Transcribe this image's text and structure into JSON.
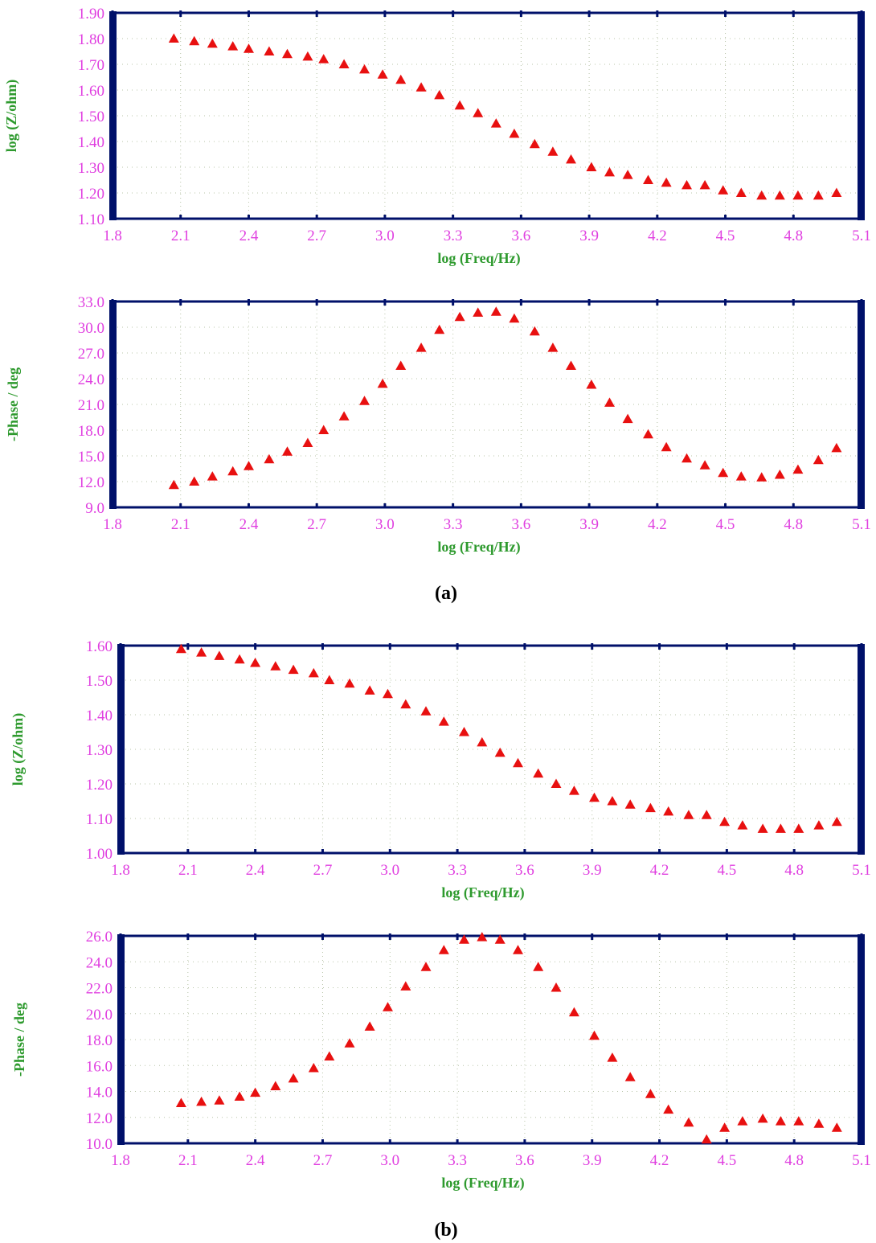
{
  "colors": {
    "frame": "#00106a",
    "tick_label": "#e040e0",
    "axis_label": "#2e9a2e",
    "grid": "#b8c4a8",
    "marker": "#e81010",
    "caption": "#000000"
  },
  "panels": [
    {
      "caption": "(a)"
    },
    {
      "caption": "(b)"
    }
  ],
  "chart_data": [
    {
      "type": "scatter",
      "panel": "(a)",
      "marker": "triangle",
      "xlabel": "log (Freq/Hz)",
      "ylabel": "log (Z/ohm)",
      "xlim": [
        1.8,
        5.1
      ],
      "ylim": [
        1.1,
        1.9
      ],
      "x_ticks": [
        "1.8",
        "2.1",
        "2.4",
        "2.7",
        "3.0",
        "3.3",
        "3.6",
        "3.9",
        "4.2",
        "4.5",
        "4.8",
        "5.1"
      ],
      "y_ticks": [
        "1.10",
        "1.20",
        "1.30",
        "1.40",
        "1.50",
        "1.60",
        "1.70",
        "1.80",
        "1.90"
      ],
      "grid": true,
      "x": [
        2.07,
        2.16,
        2.24,
        2.33,
        2.4,
        2.49,
        2.57,
        2.66,
        2.73,
        2.82,
        2.91,
        2.99,
        3.07,
        3.16,
        3.24,
        3.33,
        3.41,
        3.49,
        3.57,
        3.66,
        3.74,
        3.82,
        3.91,
        3.99,
        4.07,
        4.16,
        4.24,
        4.33,
        4.41,
        4.49,
        4.57,
        4.66,
        4.74,
        4.82,
        4.91,
        4.99
      ],
      "y": [
        1.8,
        1.79,
        1.78,
        1.77,
        1.76,
        1.75,
        1.74,
        1.73,
        1.72,
        1.7,
        1.68,
        1.66,
        1.64,
        1.61,
        1.58,
        1.54,
        1.51,
        1.47,
        1.43,
        1.39,
        1.36,
        1.33,
        1.3,
        1.28,
        1.27,
        1.25,
        1.24,
        1.23,
        1.23,
        1.21,
        1.2,
        1.19,
        1.19,
        1.19,
        1.19,
        1.2
      ]
    },
    {
      "type": "scatter",
      "panel": "(a)",
      "marker": "triangle",
      "xlabel": "log (Freq/Hz)",
      "ylabel": "-Phase / deg",
      "xlim": [
        1.8,
        5.1
      ],
      "ylim": [
        9.0,
        33.0
      ],
      "x_ticks": [
        "1.8",
        "2.1",
        "2.4",
        "2.7",
        "3.0",
        "3.3",
        "3.6",
        "3.9",
        "4.2",
        "4.5",
        "4.8",
        "5.1"
      ],
      "y_ticks": [
        "9.0",
        "12.0",
        "15.0",
        "18.0",
        "21.0",
        "24.0",
        "27.0",
        "30.0",
        "33.0"
      ],
      "grid": true,
      "x": [
        2.07,
        2.16,
        2.24,
        2.33,
        2.4,
        2.49,
        2.57,
        2.66,
        2.73,
        2.82,
        2.91,
        2.99,
        3.07,
        3.16,
        3.24,
        3.33,
        3.41,
        3.49,
        3.57,
        3.66,
        3.74,
        3.82,
        3.91,
        3.99,
        4.07,
        4.16,
        4.24,
        4.33,
        4.41,
        4.49,
        4.57,
        4.66,
        4.74,
        4.82,
        4.91,
        4.99
      ],
      "y": [
        11.6,
        12.0,
        12.6,
        13.2,
        13.8,
        14.6,
        15.5,
        16.5,
        18.0,
        19.6,
        21.4,
        23.4,
        25.5,
        27.6,
        29.7,
        31.2,
        31.7,
        31.8,
        31.0,
        29.5,
        27.6,
        25.5,
        23.3,
        21.2,
        19.3,
        17.5,
        16.0,
        14.7,
        13.9,
        13.0,
        12.6,
        12.5,
        12.8,
        13.4,
        14.5,
        15.9
      ]
    },
    {
      "type": "scatter",
      "panel": "(b)",
      "marker": "triangle",
      "xlabel": "log (Freq/Hz)",
      "ylabel": "log (Z/ohm)",
      "xlim": [
        1.8,
        5.1
      ],
      "ylim": [
        1.0,
        1.6
      ],
      "x_ticks": [
        "1.8",
        "2.1",
        "2.4",
        "2.7",
        "3.0",
        "3.3",
        "3.6",
        "3.9",
        "4.2",
        "4.5",
        "4.8",
        "5.1"
      ],
      "y_ticks": [
        "1.00",
        "1.10",
        "1.20",
        "1.30",
        "1.40",
        "1.50",
        "1.60"
      ],
      "grid": true,
      "x": [
        2.07,
        2.16,
        2.24,
        2.33,
        2.4,
        2.49,
        2.57,
        2.66,
        2.73,
        2.82,
        2.91,
        2.99,
        3.07,
        3.16,
        3.24,
        3.33,
        3.41,
        3.49,
        3.57,
        3.66,
        3.74,
        3.82,
        3.91,
        3.99,
        4.07,
        4.16,
        4.24,
        4.33,
        4.41,
        4.49,
        4.57,
        4.66,
        4.74,
        4.82,
        4.91,
        4.99
      ],
      "y": [
        1.59,
        1.58,
        1.57,
        1.56,
        1.55,
        1.54,
        1.53,
        1.52,
        1.5,
        1.49,
        1.47,
        1.46,
        1.43,
        1.41,
        1.38,
        1.35,
        1.32,
        1.29,
        1.26,
        1.23,
        1.2,
        1.18,
        1.16,
        1.15,
        1.14,
        1.13,
        1.12,
        1.11,
        1.11,
        1.09,
        1.08,
        1.07,
        1.07,
        1.07,
        1.08,
        1.09
      ]
    },
    {
      "type": "scatter",
      "panel": "(b)",
      "marker": "triangle",
      "xlabel": "log (Freq/Hz)",
      "ylabel": "-Phase / deg",
      "xlim": [
        1.8,
        5.1
      ],
      "ylim": [
        10.0,
        26.0
      ],
      "x_ticks": [
        "1.8",
        "2.1",
        "2.4",
        "2.7",
        "3.0",
        "3.3",
        "3.6",
        "3.9",
        "4.2",
        "4.5",
        "4.8",
        "5.1"
      ],
      "y_ticks": [
        "10.0",
        "12.0",
        "14.0",
        "16.0",
        "18.0",
        "20.0",
        "22.0",
        "24.0",
        "26.0"
      ],
      "grid": true,
      "x": [
        2.07,
        2.16,
        2.24,
        2.33,
        2.4,
        2.49,
        2.57,
        2.66,
        2.73,
        2.82,
        2.91,
        2.99,
        3.07,
        3.16,
        3.24,
        3.33,
        3.41,
        3.49,
        3.57,
        3.66,
        3.74,
        3.82,
        3.91,
        3.99,
        4.07,
        4.16,
        4.24,
        4.33,
        4.41,
        4.49,
        4.57,
        4.66,
        4.74,
        4.82,
        4.91,
        4.99
      ],
      "y": [
        13.1,
        13.2,
        13.3,
        13.6,
        13.9,
        14.4,
        15.0,
        15.8,
        16.7,
        17.7,
        19.0,
        20.5,
        22.1,
        23.6,
        24.9,
        25.7,
        25.9,
        25.7,
        24.9,
        23.6,
        22.0,
        20.1,
        18.3,
        16.6,
        15.1,
        13.8,
        12.6,
        11.6,
        10.3,
        11.2,
        11.7,
        11.9,
        11.7,
        11.7,
        11.5,
        11.2
      ]
    }
  ]
}
